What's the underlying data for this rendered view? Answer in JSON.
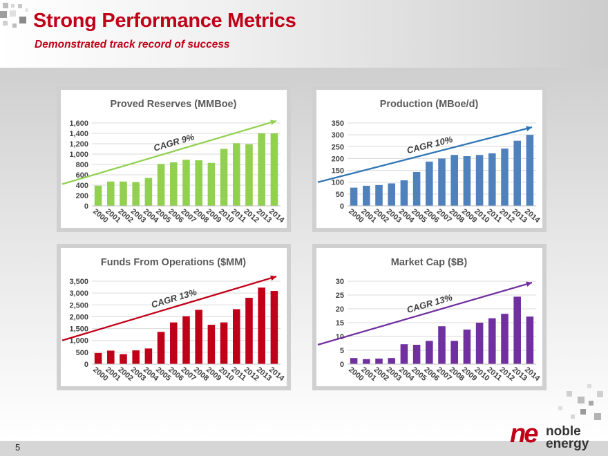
{
  "header": {
    "title": "Strong Performance Metrics",
    "subtitle": "Demonstrated track record of success"
  },
  "footer": {
    "page_number": "5"
  },
  "logo": {
    "mark": "ne",
    "line1": "noble",
    "line2": "energy"
  },
  "colors": {
    "brand_red": "#c00018"
  },
  "chart_data": [
    {
      "type": "bar",
      "title": "Proved Reserves (MMBoe)",
      "categories": [
        "2000",
        "2001",
        "2002",
        "2003",
        "2004",
        "2005",
        "2006",
        "2007",
        "2008",
        "2009",
        "2010",
        "2011",
        "2012",
        "2013",
        "2014"
      ],
      "values": [
        390,
        470,
        470,
        460,
        540,
        810,
        840,
        890,
        880,
        830,
        1100,
        1210,
        1190,
        1400,
        1400
      ],
      "ylim": [
        0,
        1600
      ],
      "yticks": [
        "0",
        "200",
        "400",
        "600",
        "800",
        "1,000",
        "1,200",
        "1,400",
        "1,600"
      ],
      "bar_color": "#92d050",
      "trend": {
        "label": "CAGR 9%",
        "color": "#92d050",
        "start": 420,
        "end": 1640
      }
    },
    {
      "type": "bar",
      "title": "Production (MBoe/d)",
      "categories": [
        "2000",
        "2001",
        "2002",
        "2003",
        "2004",
        "2005",
        "2006",
        "2007",
        "2008",
        "2009",
        "2010",
        "2011",
        "2012",
        "2013",
        "2014"
      ],
      "values": [
        77,
        85,
        88,
        95,
        108,
        143,
        187,
        200,
        215,
        210,
        215,
        222,
        242,
        275,
        300
      ],
      "ylim": [
        0,
        350
      ],
      "yticks": [
        "0",
        "50",
        "100",
        "150",
        "200",
        "250",
        "300",
        "350"
      ],
      "bar_color": "#4f81bd",
      "trend": {
        "label": "CAGR 10%",
        "color": "#2e75b6",
        "start": 100,
        "end": 332
      }
    },
    {
      "type": "bar",
      "title": "Funds From Operations ($MM)",
      "categories": [
        "2000",
        "2001",
        "2002",
        "2003",
        "2004",
        "2005",
        "2006",
        "2007",
        "2008",
        "2009",
        "2010",
        "2011",
        "2012",
        "2013",
        "2014"
      ],
      "values": [
        470,
        570,
        420,
        580,
        660,
        1360,
        1760,
        2020,
        2290,
        1660,
        1760,
        2320,
        2800,
        3230,
        3090
      ],
      "ylim": [
        0,
        3500
      ],
      "yticks": [
        "0",
        "500",
        "1,000",
        "1,500",
        "2,000",
        "2,500",
        "3,000",
        "3,500"
      ],
      "bar_color": "#c00018",
      "trend": {
        "label": "CAGR 13%",
        "color": "#c00018",
        "start": 1000,
        "end": 3700
      }
    },
    {
      "type": "bar",
      "title": "Market Cap ($B)",
      "categories": [
        "2000",
        "2001",
        "2002",
        "2003",
        "2004",
        "2005",
        "2006",
        "2007",
        "2008",
        "2009",
        "2010",
        "2011",
        "2012",
        "2013",
        "2014"
      ],
      "values": [
        2.2,
        1.8,
        2.0,
        2.2,
        7.2,
        7.0,
        8.4,
        13.7,
        8.4,
        12.5,
        15.0,
        16.6,
        18.2,
        24.4,
        17.2
      ],
      "ylim": [
        0,
        30
      ],
      "yticks": [
        "0",
        "5",
        "10",
        "15",
        "20",
        "25",
        "30"
      ],
      "bar_color": "#7030a0",
      "trend": {
        "label": "CAGR 13%",
        "color": "#7030a0",
        "start": 7,
        "end": 29.5
      }
    }
  ]
}
